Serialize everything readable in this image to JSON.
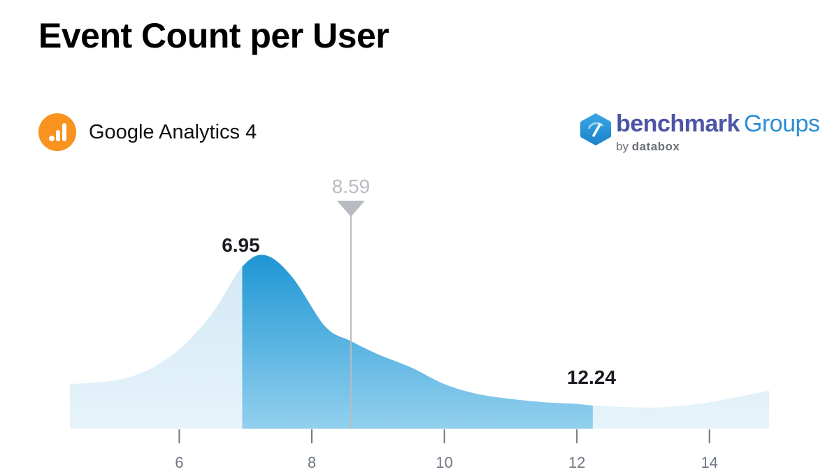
{
  "header": {
    "title": "Event Count per User"
  },
  "source": {
    "icon": "google-analytics-icon",
    "label": "Google Analytics 4",
    "icon_color": "#f7931e"
  },
  "brand": {
    "icon": "benchmark-hexagon-icon",
    "name": "benchmark",
    "suffix": "Groups",
    "by": "by",
    "company": "databox"
  },
  "chart_data": {
    "type": "area",
    "title": "Event Count per User",
    "xlabel": "",
    "ylabel": "",
    "x_ticks": [
      6,
      8,
      10,
      12,
      14
    ],
    "xlim": [
      4.35,
      14.9
    ],
    "grid": false,
    "legend": "none",
    "description": "Distribution curve (density) of Event Count per User; highlighted band marks the interquartile range from 6.95 to 12.24 with median marker at 8.59",
    "curve": {
      "x": [
        4.35,
        5.0,
        5.5,
        6.0,
        6.5,
        6.95,
        7.3,
        7.7,
        8.2,
        8.59,
        9.0,
        9.5,
        10.0,
        10.5,
        11.0,
        11.5,
        12.0,
        12.24,
        12.8,
        13.3,
        14.0,
        14.9
      ],
      "y": [
        0.27,
        0.29,
        0.35,
        0.48,
        0.7,
        0.98,
        1.05,
        0.92,
        0.62,
        0.53,
        0.45,
        0.37,
        0.27,
        0.21,
        0.18,
        0.16,
        0.15,
        0.14,
        0.13,
        0.13,
        0.16,
        0.23
      ]
    },
    "highlight_range": {
      "low": 6.95,
      "high": 12.24
    },
    "annotations": {
      "low_label": "6.95",
      "high_label": "12.24",
      "median_label": "8.59",
      "median_value": 8.59
    },
    "colors": {
      "highlight_top": "#1e96d4",
      "highlight_bottom": "#93d0ee",
      "outer_fill": "#ddeef8",
      "median_line": "#b8bcc2",
      "axis_text": "#707884"
    }
  }
}
